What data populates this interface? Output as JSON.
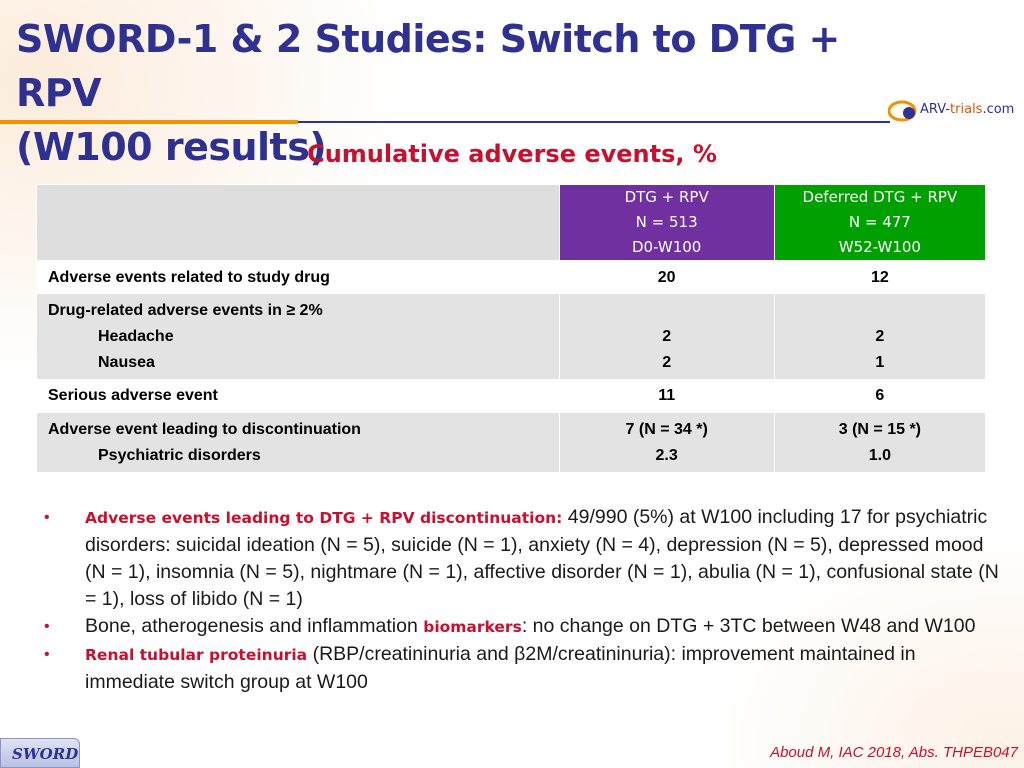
{
  "slide": {
    "title_line1": "SWORD-1 & 2 Studies: Switch to DTG + RPV",
    "title_line2": "(W100 results)",
    "logo": {
      "prefix": "ARV-",
      "middle": "trials",
      "suffix": ".com"
    },
    "subtitle": "Cumulative adverse events, %"
  },
  "table": {
    "columns": [
      {
        "line1": "DTG + RPV",
        "line2": "N = 513",
        "line3": "D0-W100"
      },
      {
        "line1": "Deferred DTG + RPV",
        "line2": "N = 477",
        "line3": "W52-W100"
      }
    ],
    "rows": [
      {
        "label": "Adverse events related to study drug",
        "v1": "20",
        "v2": "12"
      },
      {
        "label": "Drug-related adverse events in ≥ 2%",
        "sub1": "Headache",
        "sub2": "Nausea",
        "v1a": "2",
        "v1b": "2",
        "v2a": "2",
        "v2b": "1"
      },
      {
        "label": "Serious adverse event",
        "v1": "11",
        "v2": "6"
      },
      {
        "label": "Adverse event leading to discontinuation",
        "sub1": "Psychiatric disorders",
        "v1a": "7 (N = 34 *)",
        "v1b": "2.3",
        "v2a": "3 (N = 15 *)",
        "v2b": "1.0"
      }
    ]
  },
  "bullets": [
    {
      "highlight": "Adverse events leading to DTG + RPV discontinuation:",
      "text": " 49/990 (5%) at W100 including 17 for psychiatric disorders: suicidal ideation (N = 5), suicide (N = 1), anxiety (N = 4), depression (N = 5), depressed mood (N = 1), insomnia (N = 5), nightmare (N = 1), affective disorder (N = 1), abulia (N = 1), confusional state (N = 1), loss of libido (N = 1)"
    },
    {
      "pre": "Bone, atherogenesis and inflammation ",
      "highlight": "biomarkers",
      "text": ": no change on DTG + 3TC between W48 and W100"
    },
    {
      "highlight": "Renal tubular proteinuria",
      "text": " (RBP/creatininuria and β2M/creatininuria): improvement maintained in immediate switch group at W100"
    }
  ],
  "footer": {
    "badge": "SWORD",
    "citation": "Aboud M, IAC 2018, Abs. THPEB047"
  },
  "colors": {
    "title": "#2e3192",
    "accent": "#c8102e",
    "purple": "#7030a0",
    "green": "#00a000",
    "orange": "#f39200"
  }
}
